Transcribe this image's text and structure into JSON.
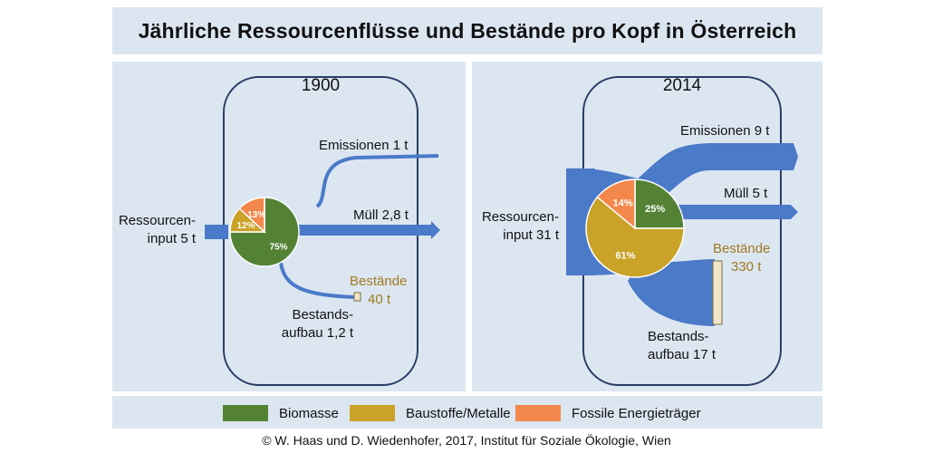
{
  "title": "Jährliche Ressourcenflüsse und Bestände pro Kopf in Österreich",
  "panels": {
    "left": {
      "year": "1900",
      "input_line1": "Ressourcen-",
      "input_line2": "input 5 t",
      "emissions": "Emissionen 1 t",
      "waste": "Müll 2,8 t",
      "stock_line1": "Bestände",
      "stock_line2": "40 t",
      "buildup_line1": "Bestands-",
      "buildup_line2": "aufbau 1,2 t",
      "pie": [
        {
          "category": "Biomasse",
          "percent": 75,
          "label": "75%"
        },
        {
          "category": "Baustoffe/Metalle",
          "percent": 12,
          "label": "12%"
        },
        {
          "category": "Fossile Energieträger",
          "percent": 13,
          "label": "13%"
        }
      ]
    },
    "right": {
      "year": "2014",
      "input_line1": "Ressourcen-",
      "input_line2": "input 31 t",
      "emissions": "Emissionen 9 t",
      "waste": "Müll 5 t",
      "stock_line1": "Bestände",
      "stock_line2": "330 t",
      "buildup_line1": "Bestands-",
      "buildup_line2": "aufbau 17 t",
      "pie": [
        {
          "category": "Biomasse",
          "percent": 25,
          "label": "25%"
        },
        {
          "category": "Baustoffe/Metalle",
          "percent": 61,
          "label": "61%"
        },
        {
          "category": "Fossile Energieträger",
          "percent": 14,
          "label": "14%"
        }
      ]
    }
  },
  "legend": [
    {
      "label": "Biomasse",
      "color": "#548235"
    },
    {
      "label": "Baustoffe/Metalle",
      "color": "#c9a227"
    },
    {
      "label": "Fossile Energieträger",
      "color": "#f4874b"
    }
  ],
  "colors": {
    "flow": "#4a7ac8",
    "frame": "#2a3d66",
    "background": "#dce6f1",
    "stock_text": "#a07a1f"
  },
  "credit": "© W. Haas und D. Wiedenhofer, 2017, Institut für Soziale Ökologie, Wien"
}
